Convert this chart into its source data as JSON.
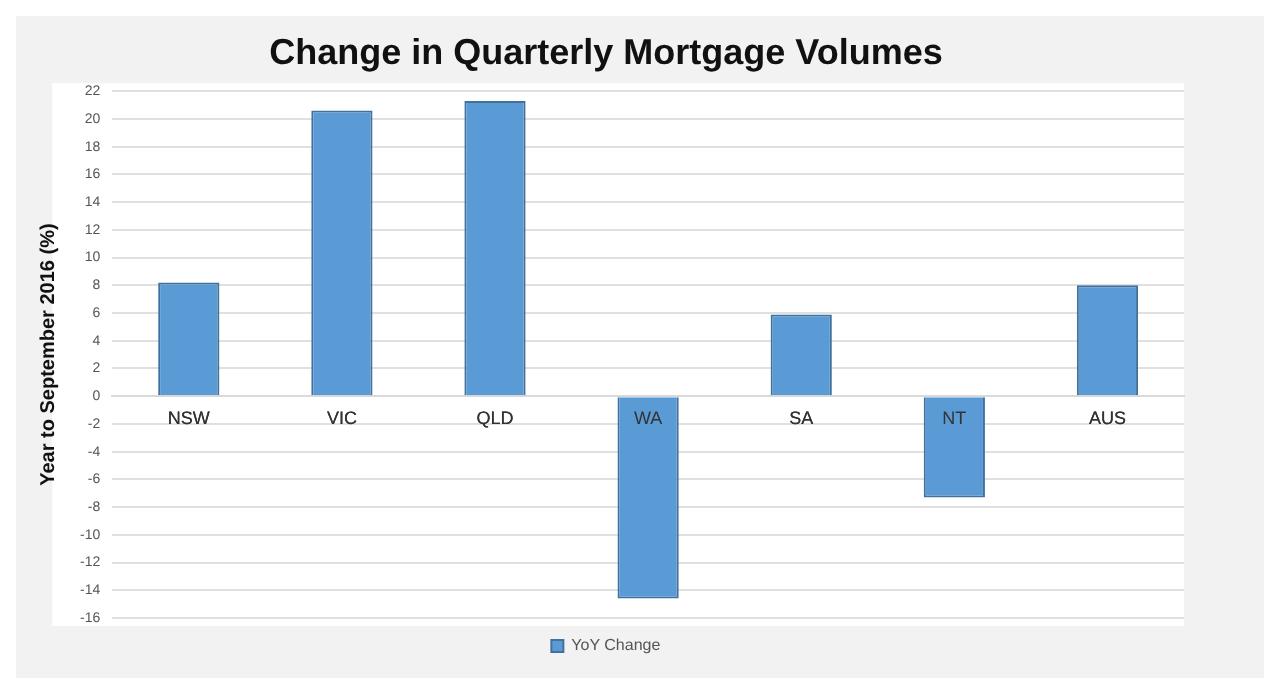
{
  "chart_data": {
    "type": "bar",
    "title": "Change in Quarterly Mortgage Volumes",
    "ylabel": "Year to September 2016 (%)",
    "categories": [
      "NSW",
      "VIC",
      "QLD",
      "WA",
      "SA",
      "NT",
      "AUS"
    ],
    "series": [
      {
        "name": "YoY Change",
        "color": "#5b9bd5",
        "values": [
          8.2,
          20.6,
          21.3,
          -14.6,
          5.9,
          -7.3,
          8.0
        ]
      }
    ],
    "ylim": [
      -16,
      22
    ],
    "yticks": [
      -16,
      -14,
      -12,
      -10,
      -8,
      -6,
      -4,
      -2,
      0,
      2,
      4,
      6,
      8,
      10,
      12,
      14,
      16,
      18,
      20,
      22
    ],
    "grid": "y",
    "legend": "bottom"
  }
}
